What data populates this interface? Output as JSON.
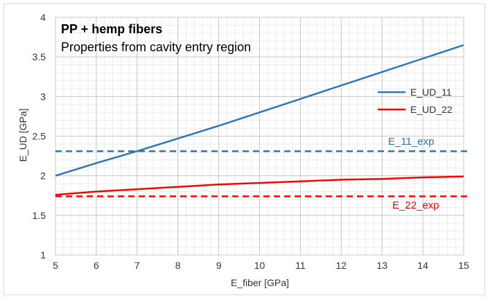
{
  "chart_data": {
    "type": "line",
    "title": "PP + hemp fibers",
    "subtitle": "Properties from cavity entry region",
    "xlabel": "E_fiber [GPa]",
    "ylabel": "E_UD [GPa]",
    "xlim": [
      5,
      15
    ],
    "ylim": [
      1,
      4
    ],
    "x_ticks": [
      5,
      6,
      7,
      8,
      9,
      10,
      11,
      12,
      13,
      14,
      15
    ],
    "y_ticks": [
      {
        "value": 1,
        "label": "1"
      },
      {
        "value": 1.5,
        "label": "1.5"
      },
      {
        "value": 2,
        "label": "2"
      },
      {
        "value": 2.5,
        "label": "2.5"
      },
      {
        "value": 3,
        "label": "3"
      },
      {
        "value": 3.5,
        "label": "3.5"
      },
      {
        "value": 4,
        "label": "4"
      }
    ],
    "grid": true,
    "legend_position": "right",
    "series": [
      {
        "name": "E_UD_11",
        "color": "#2e75b6",
        "style": "solid",
        "x": [
          5,
          6,
          7,
          8,
          9,
          10,
          11,
          12,
          13,
          14,
          15
        ],
        "values": [
          2.0,
          2.16,
          2.31,
          2.47,
          2.63,
          2.8,
          2.97,
          3.14,
          3.31,
          3.48,
          3.65
        ]
      },
      {
        "name": "E_UD_22",
        "color": "#ff0000",
        "style": "solid",
        "x": [
          5,
          6,
          7,
          8,
          9,
          10,
          11,
          12,
          13,
          14,
          15
        ],
        "values": [
          1.76,
          1.8,
          1.83,
          1.86,
          1.89,
          1.91,
          1.93,
          1.95,
          1.96,
          1.98,
          1.99
        ]
      }
    ],
    "reference_lines": [
      {
        "label": "E_11_exp",
        "value": 2.31,
        "color": "#2e75b6",
        "style": "dashed"
      },
      {
        "label": "E_22_exp",
        "value": 1.74,
        "color": "#ff0000",
        "style": "dashed"
      }
    ]
  }
}
